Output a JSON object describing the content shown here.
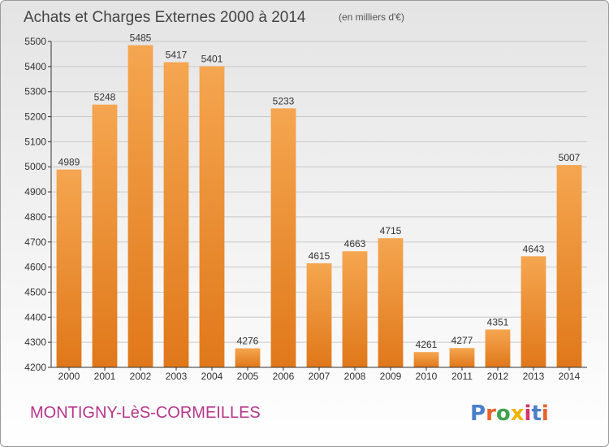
{
  "chart_data": {
    "type": "bar",
    "title": "Achats et Charges Externes 2000 à 2014",
    "subtitle": "(en milliers d'€)",
    "categories": [
      "2000",
      "2001",
      "2002",
      "2003",
      "2004",
      "2005",
      "2006",
      "2007",
      "2008",
      "2009",
      "2010",
      "2011",
      "2012",
      "2013",
      "2014"
    ],
    "values": [
      4989,
      5248,
      5485,
      5417,
      5401,
      4276,
      5233,
      4615,
      4663,
      4715,
      4261,
      4277,
      4351,
      4643,
      5007
    ],
    "ylim": [
      4200,
      5500
    ],
    "yticks": [
      4200,
      4300,
      4400,
      4500,
      4600,
      4700,
      4800,
      4900,
      5000,
      5100,
      5200,
      5300,
      5400,
      5500
    ],
    "xlabel": "",
    "ylabel": "",
    "grid": true,
    "colors": {
      "bar_light": "#f5a650",
      "bar_dark": "#e0781a",
      "title": "#444444",
      "location": "#b5358a"
    }
  },
  "location_label": "MONTIGNY-LèS-CORMEILLES",
  "brand": {
    "text": "Proxiti",
    "colors": [
      "#4a7fc9",
      "#e8622a",
      "#3fa34d",
      "#f0b400",
      "#d6336c",
      "#4a7fc9",
      "#e8622a"
    ]
  }
}
